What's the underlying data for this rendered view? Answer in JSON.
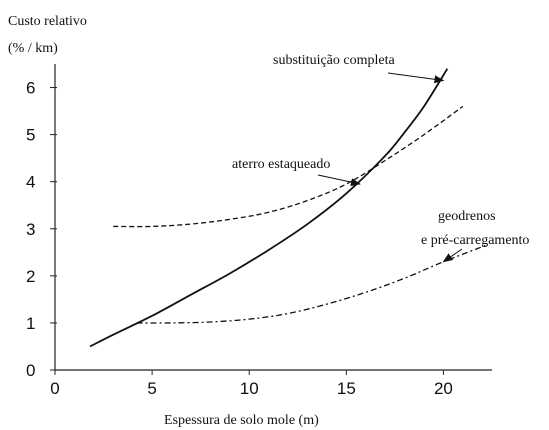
{
  "chart_data": {
    "type": "line",
    "ylabel_line1": "Custo relativo",
    "ylabel_line2": "(% / km)",
    "xlabel": "Espessura de solo mole (m)",
    "xlim": [
      0,
      22.5
    ],
    "ylim": [
      0,
      6.5
    ],
    "xticks": [
      0,
      5,
      10,
      15,
      20
    ],
    "yticks": [
      0,
      1,
      2,
      3,
      4,
      5,
      6
    ],
    "grid": false,
    "series": [
      {
        "name": "substituição completa",
        "style": "solid",
        "x": [
          1.8,
          3,
          5,
          7,
          9,
          11,
          13,
          15,
          17,
          18,
          19,
          20.2
        ],
        "y": [
          0.5,
          0.75,
          1.15,
          1.6,
          2.05,
          2.55,
          3.1,
          3.75,
          4.55,
          5.05,
          5.6,
          6.4
        ]
      },
      {
        "name": "aterro estaqueado",
        "style": "dashed",
        "x": [
          3,
          5,
          7,
          9,
          11,
          13,
          15,
          17,
          19,
          21
        ],
        "y": [
          3.05,
          3.05,
          3.1,
          3.2,
          3.35,
          3.6,
          3.95,
          4.45,
          5.0,
          5.6
        ]
      },
      {
        "name": "geodrenos\ne pré-carregamento",
        "style": "dashdot",
        "x": [
          4.2,
          6,
          8,
          10,
          12,
          14,
          16,
          18,
          20,
          22.2
        ],
        "y": [
          1.0,
          1.0,
          1.02,
          1.08,
          1.2,
          1.4,
          1.65,
          1.95,
          2.3,
          2.65
        ]
      }
    ],
    "annotations": [
      {
        "text": "substituição completa",
        "series": 0,
        "target_x": 20.0,
        "target_y": 6.15
      },
      {
        "text": "aterro estaqueado",
        "series": 1,
        "target_x": 15.7,
        "target_y": 3.95
      },
      {
        "text": "geodrenos",
        "series": 2,
        "target_x": 20.0,
        "target_y": 2.3
      },
      {
        "text": "e pré-carregamento",
        "series": 2,
        "target_x": 20.0,
        "target_y": 2.3
      }
    ]
  }
}
